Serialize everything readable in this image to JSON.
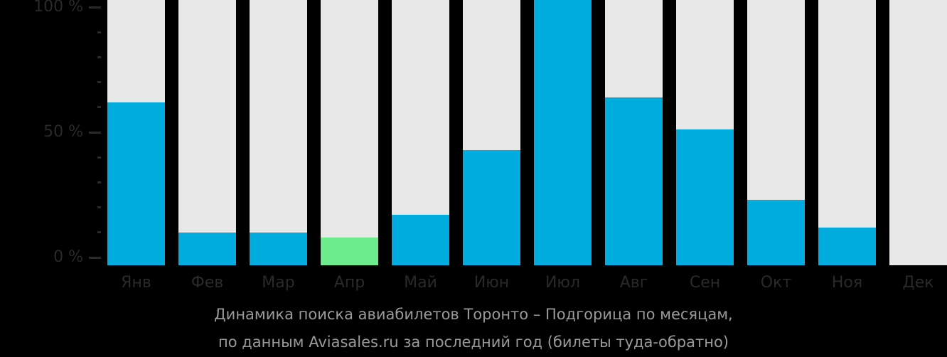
{
  "page": {
    "background": "#000000"
  },
  "chart_data": {
    "type": "bar",
    "title": "Динамика поиска авиабилетов Торонто – Подгорица по месяцам,",
    "subtitle": "по данным Aviasales.ru за последний год (билеты туда-обратно)",
    "categories": [
      "Янв",
      "Фев",
      "Мар",
      "Апр",
      "Май",
      "Июн",
      "Июл",
      "Авг",
      "Сен",
      "Окт",
      "Ноя",
      "Дек"
    ],
    "values": [
      62,
      10,
      10,
      8,
      17,
      43,
      100,
      64,
      51,
      23,
      12,
      0
    ],
    "unit": "%",
    "highlight_index": 3,
    "ylim": [
      0,
      100
    ],
    "y_tick_step_pct": 10,
    "y_major_tick_labels": [
      "100 %",
      "50 %",
      "0 %"
    ],
    "legend": "none",
    "grid": "off",
    "colors": {
      "background": "#000000",
      "bar": "#00ADDE",
      "highlight": "#6CEC8C",
      "track": "#E8E8E8",
      "axis_text": "#2A2A2A",
      "caption_text": "#9A9A9A"
    }
  }
}
